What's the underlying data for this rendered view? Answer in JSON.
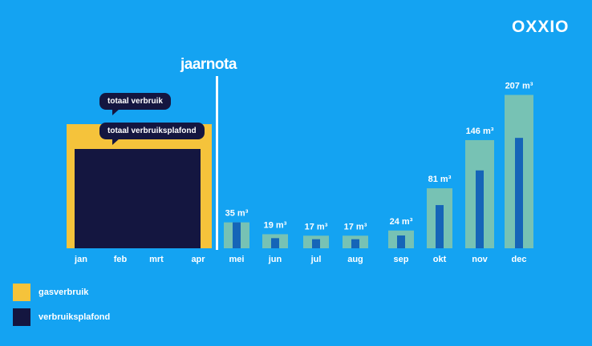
{
  "brand": {
    "logo": "OXXIO"
  },
  "chart_data": {
    "type": "bar",
    "title": "jaarnota",
    "unit": "m³",
    "categories": [
      "jan",
      "feb",
      "mrt",
      "apr",
      "mei",
      "jun",
      "jul",
      "aug",
      "sep",
      "okt",
      "nov",
      "dec"
    ],
    "combined_categories": [
      "jan",
      "feb",
      "mrt",
      "apr"
    ],
    "monthly_values": [
      null,
      null,
      null,
      null,
      35,
      19,
      17,
      17,
      24,
      81,
      146,
      207
    ],
    "value_labels": [
      "",
      "",
      "",
      "",
      "35 m³",
      "19 m³",
      "17 m³",
      "17 m³",
      "24 m³",
      "81 m³",
      "146 m³",
      "207 m³"
    ],
    "series": [
      {
        "name": "gasverbruik",
        "color": "#f5c33b"
      },
      {
        "name": "verbruiksplafond",
        "color": "#141640"
      }
    ],
    "annotations": [
      "totaal verbruik",
      "totaal verbruiksplafond"
    ],
    "monthly_colors": {
      "bar": "#7cc4b0",
      "inner": "#1565b8"
    }
  },
  "legend": [
    {
      "label": "gasverbruik",
      "color": "#f5c33b"
    },
    {
      "label": "verbruiksplafond",
      "color": "#141640"
    }
  ],
  "colors": {
    "background": "#14a3f2",
    "text": "#ffffff"
  }
}
